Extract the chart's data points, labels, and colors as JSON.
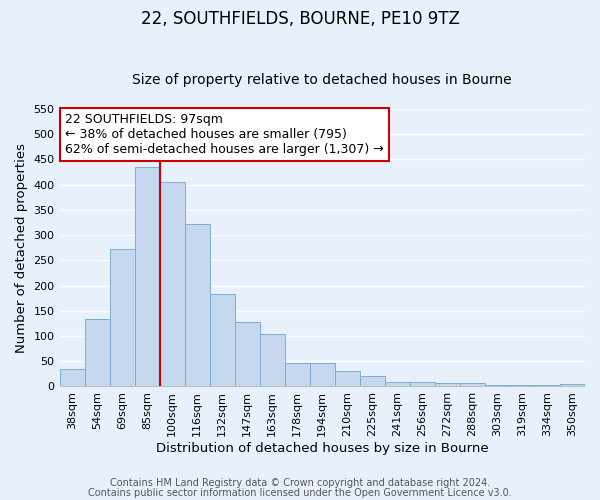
{
  "title": "22, SOUTHFIELDS, BOURNE, PE10 9TZ",
  "subtitle": "Size of property relative to detached houses in Bourne",
  "xlabel": "Distribution of detached houses by size in Bourne",
  "ylabel": "Number of detached properties",
  "footer1": "Contains HM Land Registry data © Crown copyright and database right 2024.",
  "footer2": "Contains public sector information licensed under the Open Government Licence v3.0.",
  "categories": [
    "38sqm",
    "54sqm",
    "69sqm",
    "85sqm",
    "100sqm",
    "116sqm",
    "132sqm",
    "147sqm",
    "163sqm",
    "178sqm",
    "194sqm",
    "210sqm",
    "225sqm",
    "241sqm",
    "256sqm",
    "272sqm",
    "288sqm",
    "303sqm",
    "319sqm",
    "334sqm",
    "350sqm"
  ],
  "values": [
    35,
    133,
    272,
    435,
    405,
    322,
    184,
    128,
    103,
    46,
    46,
    30,
    20,
    8,
    8,
    7,
    7,
    3,
    3,
    3,
    5
  ],
  "bar_color": "#C5D8F0",
  "bar_edge_color": "#7AAFD4",
  "property_line_color": "#CC0000",
  "annotation_text": "22 SOUTHFIELDS: 97sqm\n← 38% of detached houses are smaller (795)\n62% of semi-detached houses are larger (1,307) →",
  "annotation_box_color": "white",
  "annotation_box_edge_color": "#CC0000",
  "ylim": [
    0,
    550
  ],
  "yticks": [
    0,
    50,
    100,
    150,
    200,
    250,
    300,
    350,
    400,
    450,
    500,
    550
  ],
  "bg_color": "#E8F1FB",
  "grid_color": "white",
  "title_fontsize": 12,
  "subtitle_fontsize": 10,
  "axis_label_fontsize": 9.5,
  "tick_fontsize": 8,
  "annotation_fontsize": 9,
  "footer_fontsize": 7
}
